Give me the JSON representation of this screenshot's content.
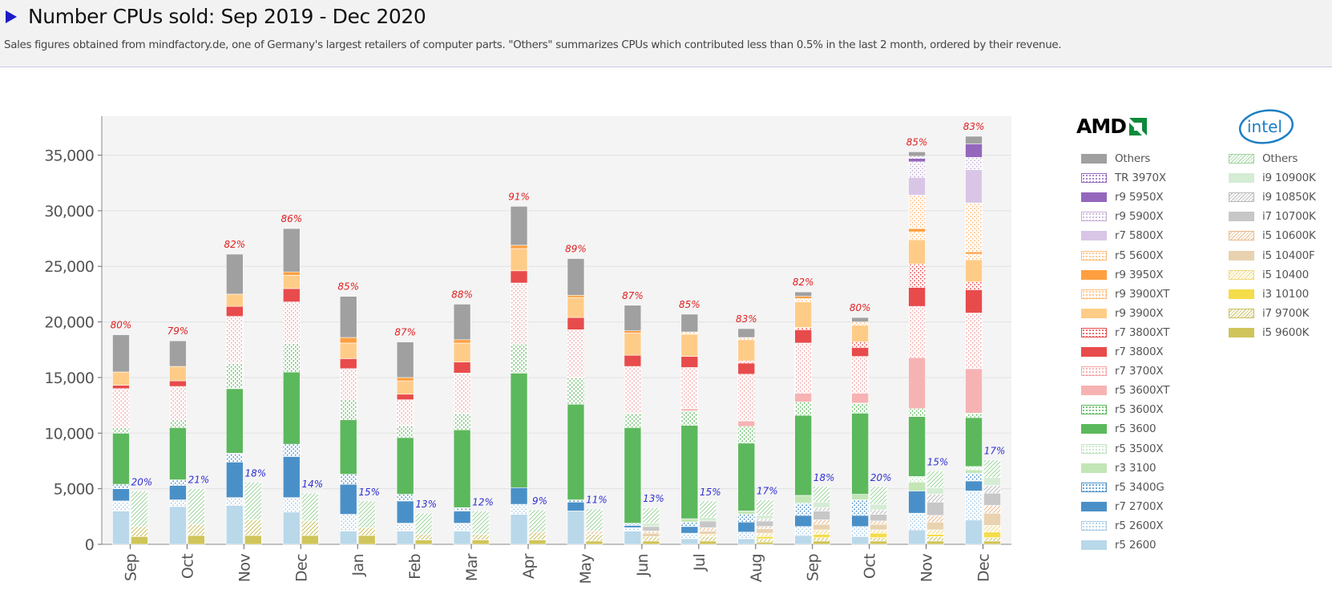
{
  "header": {
    "title": "Number CPUs sold: Sep 2019 - Dec 2020",
    "subtitle": "Sales figures obtained from mindfactory.de, one of Germany's largest retailers of computer parts. \"Others\" summarizes CPUs which contributed less than 0.5% in the last 2 month, ordered by their revenue."
  },
  "logos": {
    "amd": "AMD",
    "intel": "intel"
  },
  "legend": {
    "amd": [
      {
        "label": "Others",
        "color": "#a0a0a0",
        "pattern": "solid"
      },
      {
        "label": "TR 3970X",
        "color": "#9467bd",
        "pattern": "dots"
      },
      {
        "label": "r9 5950X",
        "color": "#9467bd",
        "pattern": "solid"
      },
      {
        "label": "r9 5900X",
        "color": "#c5b0d5",
        "pattern": "dots"
      },
      {
        "label": "r7 5800X",
        "color": "#d9c6e6",
        "pattern": "solid"
      },
      {
        "label": "r5 5600X",
        "color": "#ffbb78",
        "pattern": "dots"
      },
      {
        "label": "r9 3950X",
        "color": "#ff9f40",
        "pattern": "solid"
      },
      {
        "label": "r9 3900XT",
        "color": "#ffbb78",
        "pattern": "dots"
      },
      {
        "label": "r9 3900X",
        "color": "#ffcc88",
        "pattern": "solid"
      },
      {
        "label": "r7 3800XT",
        "color": "#e84b4b",
        "pattern": "dots"
      },
      {
        "label": "r7 3800X",
        "color": "#e84b4b",
        "pattern": "solid"
      },
      {
        "label": "r7 3700X",
        "color": "#f4a6a6",
        "pattern": "dots"
      },
      {
        "label": "r5 3600XT",
        "color": "#f7b3b3",
        "pattern": "solid"
      },
      {
        "label": "r5 3600X",
        "color": "#5cb85c",
        "pattern": "dots"
      },
      {
        "label": "r5 3600",
        "color": "#5cb85c",
        "pattern": "solid"
      },
      {
        "label": "r5 3500X",
        "color": "#bfe3bf",
        "pattern": "dots"
      },
      {
        "label": "r3 3100",
        "color": "#c3e6b7",
        "pattern": "solid"
      },
      {
        "label": "r5 3400G",
        "color": "#4a90c8",
        "pattern": "dots"
      },
      {
        "label": "r7 2700X",
        "color": "#4a90c8",
        "pattern": "solid"
      },
      {
        "label": "r5 2600X",
        "color": "#a6cbe6",
        "pattern": "dots"
      },
      {
        "label": "r5 2600",
        "color": "#b9d8ea",
        "pattern": "solid"
      }
    ],
    "intel": [
      {
        "label": "Others",
        "color": "#9fd39f",
        "pattern": "hatch"
      },
      {
        "label": "i9 10900K",
        "color": "#d5ecd5",
        "pattern": "solid"
      },
      {
        "label": "i9 10850K",
        "color": "#b8b8b8",
        "pattern": "hatch"
      },
      {
        "label": "i7 10700K",
        "color": "#c7c7c7",
        "pattern": "solid"
      },
      {
        "label": "i5 10600K",
        "color": "#e8b98a",
        "pattern": "hatch"
      },
      {
        "label": "i5 10400F",
        "color": "#e8d2b0",
        "pattern": "solid"
      },
      {
        "label": "i5 10400",
        "color": "#f0d878",
        "pattern": "hatch"
      },
      {
        "label": "i3 10100",
        "color": "#f5dc4a",
        "pattern": "solid"
      },
      {
        "label": "i7 9700K",
        "color": "#c8c060",
        "pattern": "hatch"
      },
      {
        "label": "i5 9600K",
        "color": "#cfc55a",
        "pattern": "solid"
      }
    ]
  },
  "chart_data": {
    "type": "bar",
    "stacked": true,
    "grouped": true,
    "title": "Number CPUs sold: Sep 2019 - Dec 2020",
    "xlabel": "",
    "ylabel": "",
    "ylim": [
      0,
      38500
    ],
    "yticks": [
      0,
      5000,
      10000,
      15000,
      20000,
      25000,
      30000,
      35000
    ],
    "ytick_labels": [
      "0",
      "5,000",
      "10,000",
      "15,000",
      "20,000",
      "25,000",
      "30,000",
      "35,000"
    ],
    "grid": "horizontal",
    "categories": [
      "Sep",
      "Oct",
      "Nov",
      "Dec",
      "Jan",
      "Feb",
      "Mar",
      "Apr",
      "May",
      "Jun",
      "Jul",
      "Aug",
      "Sep",
      "Oct",
      "Nov",
      "Dec"
    ],
    "amd_totals": [
      18850,
      18300,
      26100,
      28700,
      22300,
      18200,
      21600,
      30400,
      25700,
      22000,
      21200,
      20200,
      22900,
      20900,
      36400,
      37400
    ],
    "intel_totals": [
      4800,
      5000,
      5600,
      4600,
      3900,
      2800,
      3000,
      3100,
      3200,
      3300,
      3900,
      4000,
      5200,
      5200,
      6600,
      7600
    ],
    "amd_share_labels": [
      "80%",
      "79%",
      "82%",
      "86%",
      "85%",
      "87%",
      "88%",
      "91%",
      "89%",
      "87%",
      "85%",
      "83%",
      "82%",
      "80%",
      "85%",
      "83%"
    ],
    "intel_share_labels": [
      "20%",
      "21%",
      "18%",
      "14%",
      "15%",
      "13%",
      "12%",
      "9%",
      "11%",
      "13%",
      "15%",
      "17%",
      "18%",
      "20%",
      "15%",
      "17%"
    ],
    "amd_series": [
      {
        "name": "r5 2600",
        "values": [
          3000,
          3400,
          3500,
          2900,
          1200,
          1200,
          1200,
          2700,
          3000,
          1200,
          500,
          500,
          800,
          700,
          1300,
          2200
        ]
      },
      {
        "name": "r5 2600X",
        "values": [
          900,
          600,
          700,
          1300,
          1500,
          700,
          700,
          900,
          0,
          300,
          500,
          600,
          800,
          900,
          1500,
          2600
        ]
      },
      {
        "name": "r7 2700X",
        "values": [
          1100,
          1300,
          3200,
          3700,
          2700,
          2000,
          1100,
          1500,
          800,
          200,
          600,
          900,
          1000,
          1000,
          2000,
          900
        ]
      },
      {
        "name": "r5 3400G",
        "values": [
          400,
          500,
          800,
          1100,
          900,
          600,
          300,
          0,
          200,
          200,
          400,
          700,
          1100,
          1400,
          0,
          700
        ]
      },
      {
        "name": "r3 3100",
        "values": [
          0,
          0,
          0,
          0,
          0,
          0,
          0,
          0,
          0,
          0,
          300,
          300,
          700,
          500,
          800,
          300
        ]
      },
      {
        "name": "r5 3500X",
        "values": [
          0,
          0,
          0,
          0,
          0,
          0,
          0,
          0,
          0,
          0,
          0,
          0,
          0,
          0,
          500,
          300
        ]
      },
      {
        "name": "r5 3600",
        "values": [
          4600,
          4700,
          5800,
          6500,
          4900,
          5100,
          7000,
          10300,
          8600,
          8600,
          8400,
          6100,
          7200,
          7300,
          5400,
          4400
        ]
      },
      {
        "name": "r5 3600X",
        "values": [
          500,
          700,
          2300,
          2600,
          1800,
          1100,
          1500,
          2600,
          2400,
          1300,
          1300,
          1500,
          1200,
          900,
          700,
          400
        ]
      },
      {
        "name": "r5 3600XT",
        "values": [
          0,
          0,
          0,
          0,
          0,
          0,
          0,
          0,
          0,
          0,
          200,
          500,
          800,
          900,
          4600,
          4000
        ]
      },
      {
        "name": "r7 3700X",
        "values": [
          3500,
          3000,
          4200,
          3700,
          2800,
          2300,
          3600,
          5500,
          4300,
          4200,
          3700,
          4200,
          4500,
          3300,
          4600,
          5000
        ]
      },
      {
        "name": "r7 3800X",
        "values": [
          300,
          500,
          900,
          1200,
          900,
          500,
          1000,
          1100,
          1100,
          1000,
          1000,
          1000,
          1200,
          800,
          1700,
          2100
        ]
      },
      {
        "name": "r7 3800XT",
        "values": [
          0,
          0,
          0,
          0,
          0,
          0,
          0,
          0,
          0,
          0,
          0,
          200,
          200,
          500,
          2100,
          700
        ]
      },
      {
        "name": "r9 3900X",
        "values": [
          1200,
          1300,
          1100,
          1200,
          1400,
          1200,
          1700,
          2000,
          1800,
          2000,
          2000,
          1900,
          2300,
          1500,
          2200,
          2000
        ]
      },
      {
        "name": "r9 3900XT",
        "values": [
          0,
          0,
          0,
          0,
          0,
          0,
          0,
          0,
          0,
          0,
          200,
          200,
          300,
          300,
          700,
          500
        ]
      },
      {
        "name": "r9 3950X",
        "values": [
          0,
          0,
          0,
          300,
          500,
          300,
          300,
          300,
          200,
          200,
          0,
          0,
          200,
          0,
          300,
          200
        ]
      },
      {
        "name": "r5 5600X",
        "values": [
          0,
          0,
          0,
          0,
          0,
          0,
          0,
          0,
          0,
          0,
          0,
          0,
          0,
          0,
          3000,
          4400
        ]
      },
      {
        "name": "r7 5800X",
        "values": [
          0,
          0,
          0,
          0,
          0,
          0,
          0,
          0,
          0,
          0,
          0,
          0,
          0,
          0,
          1600,
          3000
        ]
      },
      {
        "name": "r9 5900X",
        "values": [
          0,
          0,
          0,
          0,
          0,
          0,
          0,
          0,
          0,
          0,
          0,
          0,
          0,
          0,
          1400,
          1100
        ]
      },
      {
        "name": "r9 5950X",
        "values": [
          0,
          0,
          0,
          0,
          0,
          0,
          0,
          0,
          0,
          0,
          0,
          0,
          0,
          0,
          300,
          1200
        ]
      },
      {
        "name": "TR 3970X",
        "values": [
          0,
          0,
          0,
          0,
          0,
          0,
          0,
          0,
          0,
          0,
          0,
          0,
          0,
          0,
          200,
          0
        ]
      },
      {
        "name": "Others",
        "values": [
          3350,
          2300,
          3600,
          3900,
          3700,
          3200,
          3200,
          3500,
          3300,
          2300,
          1600,
          800,
          400,
          400,
          400,
          700
        ]
      }
    ],
    "intel_series": [
      {
        "name": "i5 9600K",
        "values": [
          700,
          800,
          800,
          800,
          800,
          400,
          400,
          400,
          300,
          300,
          300,
          200,
          300,
          300,
          300,
          300
        ]
      },
      {
        "name": "i7 9700K",
        "values": [
          900,
          1000,
          1400,
          1300,
          700,
          500,
          500,
          700,
          600,
          400,
          400,
          300,
          300,
          300,
          400,
          300
        ]
      },
      {
        "name": "i3 10100",
        "values": [
          0,
          0,
          0,
          0,
          0,
          0,
          0,
          0,
          0,
          0,
          0,
          200,
          300,
          400,
          200,
          500
        ]
      },
      {
        "name": "i5 10400",
        "values": [
          0,
          0,
          0,
          0,
          0,
          0,
          0,
          0,
          0,
          0,
          200,
          300,
          400,
          300,
          400,
          600
        ]
      },
      {
        "name": "i5 10400F",
        "values": [
          0,
          0,
          0,
          0,
          0,
          0,
          0,
          0,
          0,
          300,
          300,
          400,
          500,
          500,
          700,
          1100
        ]
      },
      {
        "name": "i5 10600K",
        "values": [
          0,
          0,
          0,
          0,
          0,
          0,
          0,
          0,
          300,
          200,
          300,
          200,
          400,
          300,
          600,
          700
        ]
      },
      {
        "name": "i7 10700K",
        "values": [
          0,
          0,
          0,
          0,
          0,
          0,
          0,
          0,
          0,
          400,
          600,
          500,
          800,
          600,
          1200,
          1100
        ]
      },
      {
        "name": "i9 10850K",
        "values": [
          0,
          0,
          0,
          0,
          0,
          0,
          0,
          0,
          0,
          0,
          0,
          200,
          300,
          400,
          700,
          700
        ]
      },
      {
        "name": "i9 10900K",
        "values": [
          0,
          0,
          0,
          0,
          0,
          0,
          0,
          0,
          0,
          300,
          300,
          300,
          500,
          500,
          600,
          700
        ]
      },
      {
        "name": "Others",
        "values": [
          3200,
          3200,
          3400,
          2500,
          2400,
          1900,
          2100,
          2000,
          2000,
          1400,
          1500,
          1400,
          1400,
          1600,
          1500,
          1600
        ]
      }
    ]
  }
}
